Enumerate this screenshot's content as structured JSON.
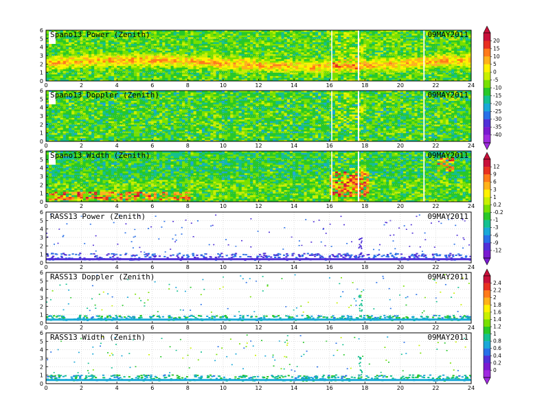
{
  "chart_data": [
    {
      "type": "heatmap",
      "title": "Spano13 Power (Zenith)",
      "date": "09MAY2011",
      "xlim": [
        0,
        24
      ],
      "ylim": [
        0,
        6
      ],
      "xticks": [
        "0",
        "2",
        "4",
        "6",
        "8",
        "10",
        "12",
        "14",
        "16",
        "18",
        "20",
        "22",
        "24"
      ],
      "yticks": [
        "0",
        "1",
        "2",
        "3",
        "4",
        "5",
        "6"
      ],
      "style": "field",
      "palette": "A",
      "base_band": {
        "height": 2.0,
        "width": 1.0,
        "value": 1.2
      },
      "base_level": -14
    },
    {
      "type": "heatmap",
      "title": "Spano13 Doppler (Zenith)",
      "date": "09MAY2011",
      "xlim": [
        0,
        24
      ],
      "ylim": [
        0,
        6
      ],
      "xticks": [
        "0",
        "2",
        "4",
        "6",
        "8",
        "10",
        "12",
        "14",
        "16",
        "18",
        "20",
        "22",
        "24"
      ],
      "yticks": [
        "0",
        "1",
        "2",
        "3",
        "4",
        "5",
        "6"
      ],
      "style": "field",
      "palette": "A",
      "base_level": -15
    },
    {
      "type": "heatmap",
      "title": "Spano13 Width (Zenith)",
      "date": "09MAY2011",
      "xlim": [
        0,
        24
      ],
      "ylim": [
        0,
        6
      ],
      "xticks": [
        "0",
        "2",
        "4",
        "6",
        "8",
        "10",
        "12",
        "14",
        "16",
        "18",
        "20",
        "22",
        "24"
      ],
      "yticks": [
        "0",
        "1",
        "2",
        "3",
        "4",
        "5",
        "6"
      ],
      "style": "field",
      "palette": "B",
      "base_level": -0.3,
      "hotspots": [
        {
          "x": [
            16.0,
            18.2
          ],
          "y": [
            0.5,
            3.5
          ]
        },
        {
          "x": [
            22.0,
            23.0
          ],
          "y": [
            3.5,
            5.0
          ]
        },
        {
          "x": [
            0.0,
            8.0
          ],
          "y": [
            0.2,
            1.0
          ]
        }
      ]
    },
    {
      "type": "heatmap",
      "title": "RASS13 Power (Zenith)",
      "date": "09MAY2011",
      "xlim": [
        0,
        24
      ],
      "ylim": [
        0,
        6
      ],
      "xticks": [
        "0",
        "2",
        "4",
        "6",
        "8",
        "10",
        "12",
        "14",
        "16",
        "18",
        "20",
        "22",
        "24"
      ],
      "yticks": [
        "0",
        "1",
        "2",
        "3",
        "4",
        "5",
        "6"
      ],
      "style": "sparse",
      "palette": "B",
      "band": [
        0.4,
        1.2
      ],
      "base_level": -11
    },
    {
      "type": "heatmap",
      "title": "RASS13 Doppler (Zenith)",
      "date": "09MAY2011",
      "xlim": [
        0,
        24
      ],
      "ylim": [
        0,
        6
      ],
      "xticks": [
        "0",
        "2",
        "4",
        "6",
        "8",
        "10",
        "12",
        "14",
        "16",
        "18",
        "20",
        "22",
        "24"
      ],
      "yticks": [
        "0",
        "1",
        "2",
        "3",
        "4",
        "5",
        "6"
      ],
      "style": "sparse",
      "palette": "C",
      "band": [
        0.4,
        1.0
      ],
      "base_level": 1.1
    },
    {
      "type": "heatmap",
      "title": "RASS13 Width (Zenith)",
      "date": "09MAY2011",
      "xlim": [
        0,
        24
      ],
      "ylim": [
        0,
        6
      ],
      "xticks": [
        "0",
        "2",
        "4",
        "6",
        "8",
        "10",
        "12",
        "14",
        "16",
        "18",
        "20",
        "22",
        "24"
      ],
      "yticks": [
        "0",
        "1",
        "2",
        "3",
        "4",
        "5",
        "6"
      ],
      "style": "sparse",
      "palette": "C",
      "band": [
        0.4,
        1.1
      ],
      "base_level": 0.7
    }
  ],
  "colorbars": [
    {
      "id": "A",
      "labels": [
        "20",
        "15",
        "10",
        "5",
        "0",
        "-5",
        "-10",
        "-15",
        "-20",
        "-25",
        "-30",
        "-35",
        "-40"
      ],
      "colors": [
        "#c8103a",
        "#e83020",
        "#ff7a1a",
        "#ffb21a",
        "#fff200",
        "#c8f000",
        "#78e000",
        "#28c828",
        "#14c090",
        "#1aa8d8",
        "#2870e8",
        "#5030d8",
        "#7a1ad0",
        "#a02ae0"
      ]
    },
    {
      "id": "B",
      "labels": [
        "12",
        "9",
        "6",
        "3",
        "1",
        "0.2",
        "-0.2",
        "-1",
        "-3",
        "-6",
        "-9",
        "-12"
      ],
      "colors": [
        "#c8103a",
        "#e83020",
        "#ff7a1a",
        "#ffb21a",
        "#fff200",
        "#c8f000",
        "#78e000",
        "#28c828",
        "#14c090",
        "#1aa8d8",
        "#2870e8",
        "#5030d8",
        "#7a1ad0"
      ]
    },
    {
      "id": "C",
      "labels": [
        "2.4",
        "2.2",
        "2",
        "1.8",
        "1.6",
        "1.4",
        "1.2",
        "1",
        "0.8",
        "0.6",
        "0.4",
        "0.2",
        "0"
      ],
      "colors": [
        "#c8103a",
        "#e83020",
        "#ff7a1a",
        "#ffb21a",
        "#fff200",
        "#c8f000",
        "#78e000",
        "#28c828",
        "#14c090",
        "#1aa8d8",
        "#2870e8",
        "#5030d8",
        "#7a1ad0",
        "#a02ae0"
      ]
    }
  ]
}
